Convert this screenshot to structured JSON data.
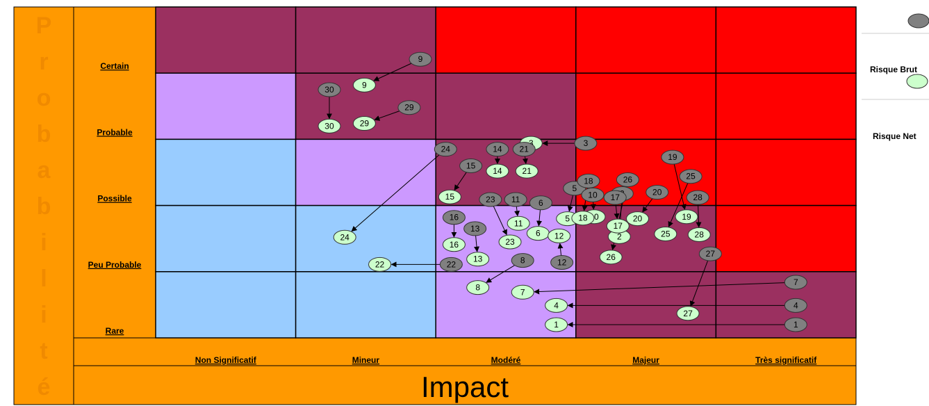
{
  "chart_data": {
    "type": "scatter",
    "ylabel": "Probabilité",
    "xlabel": "Impact",
    "rows": [
      "Certain",
      "Probable",
      "Possible",
      "Peu Probable",
      "Rare"
    ],
    "columns": [
      "Non Significatif",
      "Mineur",
      "Modéré",
      "Majeur",
      "Très significatif"
    ],
    "zone_colors": [
      "#9b3060",
      "#9b3060",
      "#ff0000",
      "#ff0000",
      "#ff0000",
      "#cc99ff",
      "#9b3060",
      "#9b3060",
      "#ff0000",
      "#ff0000",
      "#99ccff",
      "#cc99ff",
      "#9b3060",
      "#ff0000",
      "#ff0000",
      "#99ccff",
      "#99ccff",
      "#cc99ff",
      "#9b3060",
      "#ff0000",
      "#99ccff",
      "#99ccff",
      "#cc99ff",
      "#9b3060",
      "#9b3060"
    ],
    "colors": {
      "brut": "#808080",
      "net": "#ccffcc",
      "label_bg": "#ff9900",
      "grid": "#000000"
    },
    "legend": [
      "Risque Brut",
      "Risque Net"
    ],
    "risks": [
      {
        "id": "1",
        "brut": [
          4.57,
          4.8
        ],
        "net": [
          2.86,
          4.8
        ]
      },
      {
        "id": "2",
        "brut": [
          3.33,
          2.82
        ],
        "net": [
          3.31,
          3.47
        ]
      },
      {
        "id": "3",
        "brut": [
          3.07,
          2.06
        ],
        "net": [
          2.68,
          2.06
        ]
      },
      {
        "id": "4",
        "brut": [
          4.57,
          4.51
        ],
        "net": [
          2.86,
          4.51
        ]
      },
      {
        "id": "5",
        "brut": [
          2.99,
          2.74
        ],
        "net": [
          2.94,
          3.2
        ]
      },
      {
        "id": "6",
        "brut": [
          2.75,
          2.96
        ],
        "net": [
          2.73,
          3.42
        ]
      },
      {
        "id": "7",
        "brut": [
          4.57,
          4.16
        ],
        "net": [
          2.62,
          4.31
        ]
      },
      {
        "id": "8",
        "brut": [
          2.62,
          3.83
        ],
        "net": [
          2.3,
          4.24
        ]
      },
      {
        "id": "9",
        "brut": [
          1.89,
          0.79
        ],
        "net": [
          1.49,
          1.18
        ]
      },
      {
        "id": "10",
        "brut": [
          3.12,
          2.84
        ],
        "net": [
          3.13,
          3.17
        ]
      },
      {
        "id": "11",
        "brut": [
          2.57,
          2.91
        ],
        "net": [
          2.59,
          3.27
        ]
      },
      {
        "id": "12",
        "brut": [
          2.9,
          3.86
        ],
        "net": [
          2.88,
          3.46
        ]
      },
      {
        "id": "13",
        "brut": [
          2.28,
          3.35
        ],
        "net": [
          2.3,
          3.81
        ]
      },
      {
        "id": "14",
        "brut": [
          2.44,
          2.15
        ],
        "net": [
          2.44,
          2.48
        ]
      },
      {
        "id": "15",
        "brut": [
          2.25,
          2.4
        ],
        "net": [
          2.1,
          2.87
        ]
      },
      {
        "id": "16",
        "brut": [
          2.13,
          3.18
        ],
        "net": [
          2.13,
          3.59
        ]
      },
      {
        "id": "17",
        "brut": [
          3.28,
          2.88
        ],
        "net": [
          3.3,
          3.31
        ]
      },
      {
        "id": "18",
        "brut": [
          3.09,
          2.63
        ],
        "net": [
          3.05,
          3.19
        ]
      },
      {
        "id": "19",
        "brut": [
          3.69,
          2.27
        ],
        "net": [
          3.79,
          3.17
        ]
      },
      {
        "id": "20",
        "brut": [
          3.58,
          2.8
        ],
        "net": [
          3.44,
          3.2
        ]
      },
      {
        "id": "21",
        "brut": [
          2.63,
          2.15
        ],
        "net": [
          2.65,
          2.48
        ]
      },
      {
        "id": "22",
        "brut": [
          2.11,
          3.89
        ],
        "net": [
          1.6,
          3.89
        ]
      },
      {
        "id": "23",
        "brut": [
          2.39,
          2.91
        ],
        "net": [
          2.53,
          3.55
        ]
      },
      {
        "id": "24",
        "brut": [
          2.07,
          2.15
        ],
        "net": [
          1.35,
          3.48
        ]
      },
      {
        "id": "25",
        "brut": [
          3.82,
          2.56
        ],
        "net": [
          3.64,
          3.43
        ]
      },
      {
        "id": "26",
        "brut": [
          3.37,
          2.61
        ],
        "net": [
          3.25,
          3.78
        ]
      },
      {
        "id": "27",
        "brut": [
          3.96,
          3.73
        ],
        "net": [
          3.8,
          4.63
        ]
      },
      {
        "id": "28",
        "brut": [
          3.87,
          2.88
        ],
        "net": [
          3.88,
          3.44
        ]
      },
      {
        "id": "29",
        "brut": [
          1.81,
          1.52
        ],
        "net": [
          1.49,
          1.76
        ]
      },
      {
        "id": "30",
        "brut": [
          1.24,
          1.25
        ],
        "net": [
          1.24,
          1.8
        ]
      }
    ]
  }
}
